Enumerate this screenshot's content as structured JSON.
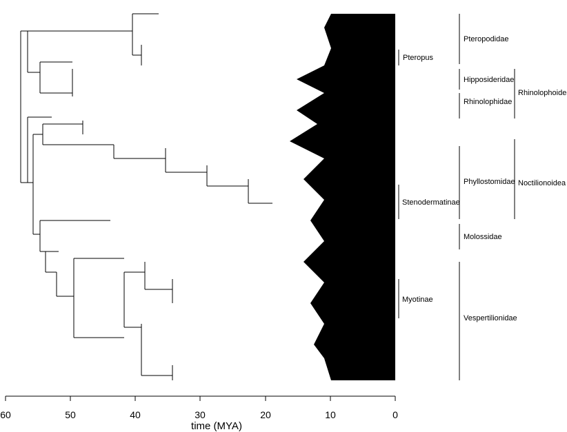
{
  "clade_labels": {
    "pteropodidae": "Pteropodidae",
    "pteropus": "Pteropus",
    "hipposideridae": "Hipposideridae",
    "rhinolophidae": "Rhinolophidae",
    "rhinolophoidea": "Rhinolophoidea",
    "phyllostomidae": "Phyllostomidae",
    "stenodermatinae": "Stenodermatinae",
    "noctilionoidea": "Noctilionoidea",
    "molossidae": "Molossidae",
    "myotinae": "Myotinae",
    "vespertilionidae": "Vespertilionidae"
  },
  "axis": {
    "title": "time (MYA)",
    "ticks": [
      "60",
      "50",
      "40",
      "30",
      "20",
      "10",
      "0"
    ]
  }
}
